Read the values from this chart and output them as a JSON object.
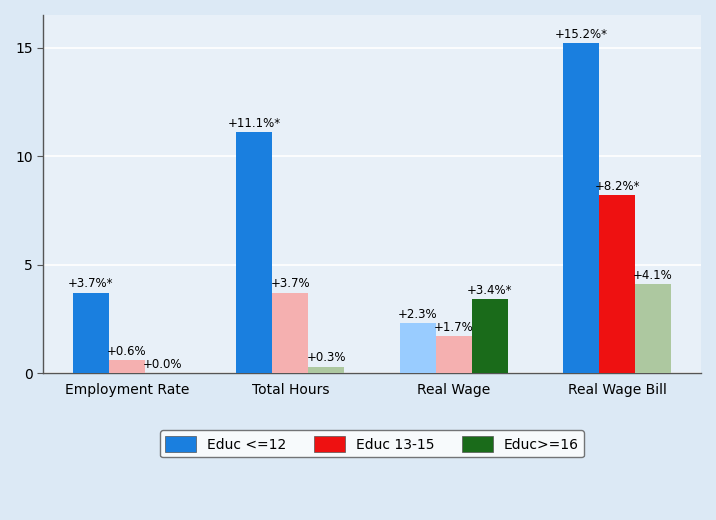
{
  "categories": [
    "Employment Rate",
    "Total Hours",
    "Real Wage",
    "Real Wage Bill"
  ],
  "series": {
    "Educ <=12": {
      "values": [
        3.7,
        11.1,
        2.3,
        15.2
      ],
      "labels": [
        "+3.7%*",
        "+11.1%*",
        "+2.3%",
        "+15.2%*"
      ],
      "significant": [
        true,
        true,
        false,
        true
      ],
      "color_sig": "#1a7fdf",
      "color_nosig": "#99ccff"
    },
    "Educ 13-15": {
      "values": [
        0.6,
        3.7,
        1.7,
        8.2
      ],
      "labels": [
        "+0.6%",
        "+3.7%",
        "+1.7%",
        "+8.2%*"
      ],
      "significant": [
        false,
        false,
        false,
        true
      ],
      "color_sig": "#ee1111",
      "color_nosig": "#f5b0b0"
    },
    "Educ>=16": {
      "values": [
        0.0,
        0.3,
        3.4,
        4.1
      ],
      "labels": [
        "+0.0%",
        "+0.3%",
        "+3.4%*",
        "+4.1%"
      ],
      "significant": [
        false,
        false,
        true,
        false
      ],
      "color_sig": "#1a6b1a",
      "color_nosig": "#adc8a0"
    }
  },
  "legend_colors": {
    "Educ <=12": "#1a7fdf",
    "Educ 13-15": "#ee1111",
    "Educ>=16": "#1a6b1a"
  },
  "ylim": [
    0,
    16.5
  ],
  "yticks": [
    0,
    5,
    10,
    15
  ],
  "bar_width": 0.22,
  "background_color": "#dce9f5",
  "plot_bg_color": "#e8f0f8",
  "label_fontsize": 8.5,
  "axis_label_fontsize": 10,
  "tick_fontsize": 10
}
